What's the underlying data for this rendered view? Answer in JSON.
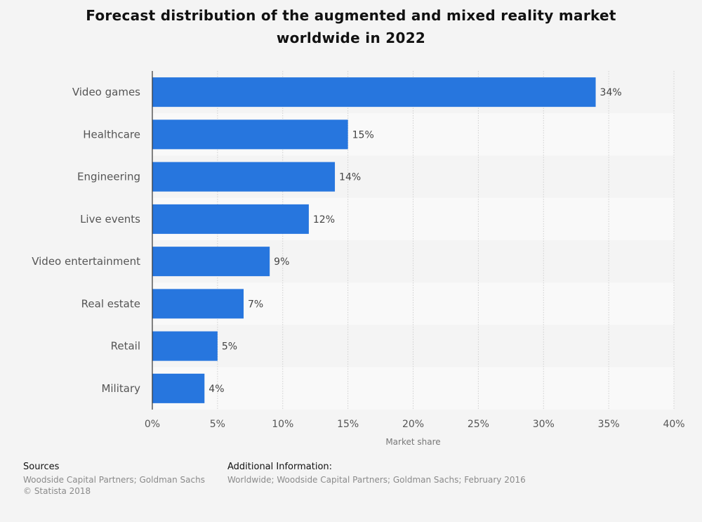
{
  "title_line1": "Forecast distribution of the augmented and mixed reality market",
  "title_line2": "worldwide in 2022",
  "chart_data": {
    "type": "bar",
    "orientation": "horizontal",
    "categories": [
      "Video games",
      "Healthcare",
      "Engineering",
      "Live events",
      "Video entertainment",
      "Real estate",
      "Retail",
      "Military"
    ],
    "values": [
      34,
      15,
      14,
      12,
      9,
      7,
      5,
      4
    ],
    "value_labels": [
      "34%",
      "15%",
      "14%",
      "12%",
      "9%",
      "7%",
      "5%",
      "4%"
    ],
    "xlabel": "Market share",
    "ylabel": "",
    "xlim": [
      0,
      40
    ],
    "xticks": [
      0,
      5,
      10,
      15,
      20,
      25,
      30,
      35,
      40
    ],
    "xtick_labels": [
      "0%",
      "5%",
      "10%",
      "15%",
      "20%",
      "25%",
      "30%",
      "35%",
      "40%"
    ],
    "grid": true,
    "legend": "none",
    "bar_color": "#2776de"
  },
  "footer": {
    "sources_label": "Sources",
    "sources_line1": "Woodside Capital Partners; Goldman Sachs",
    "sources_line2": "© Statista 2018",
    "additional_label": "Additional Information:",
    "additional_text": "Worldwide; Woodside Capital Partners; Goldman Sachs; February 2016"
  }
}
